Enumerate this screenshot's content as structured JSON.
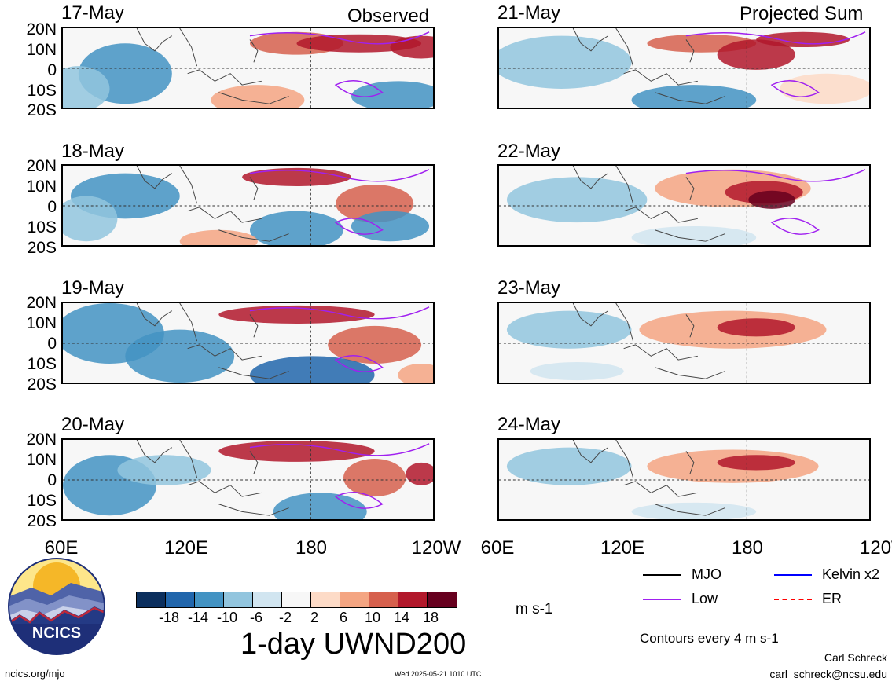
{
  "headers": {
    "observed": "Observed",
    "projected": "Projected Sum"
  },
  "observed_panels": [
    {
      "date": "17-May"
    },
    {
      "date": "18-May"
    },
    {
      "date": "19-May"
    },
    {
      "date": "20-May"
    }
  ],
  "projected_panels": [
    {
      "date": "21-May"
    },
    {
      "date": "22-May"
    },
    {
      "date": "23-May"
    },
    {
      "date": "24-May"
    }
  ],
  "lat_labels": [
    "20N",
    "10N",
    "0",
    "10S",
    "20S"
  ],
  "lon_labels": [
    "60E",
    "120E",
    "180",
    "120W"
  ],
  "colorbar": {
    "ticks": [
      "-18",
      "-14",
      "-10",
      "-6",
      "-2",
      "2",
      "6",
      "10",
      "14",
      "18"
    ],
    "colors": [
      "#0b2f5e",
      "#2166ac",
      "#4393c3",
      "#92c5de",
      "#d1e5f0",
      "#f7f7f7",
      "#fddbc7",
      "#f4a582",
      "#d6604d",
      "#b2182b",
      "#67001f"
    ],
    "units": "m s-1"
  },
  "title": "1-day UWND200",
  "legend": {
    "items": [
      {
        "label": "MJO",
        "color": "#000000"
      },
      {
        "label": "Kelvin x2",
        "color": "#0000ff"
      },
      {
        "label": "Low",
        "color": "#a020f0"
      },
      {
        "label": "ER",
        "color": "#ff0000"
      }
    ],
    "contour_note": "Contours every 4 m s-1"
  },
  "credits": {
    "author": "Carl Schreck",
    "email": "carl_schreck@ncsu.edu",
    "site": "ncics.org/mjo",
    "timestamp": "Wed 2025-05-21 1010 UTC",
    "logo_text": "NCICS"
  }
}
